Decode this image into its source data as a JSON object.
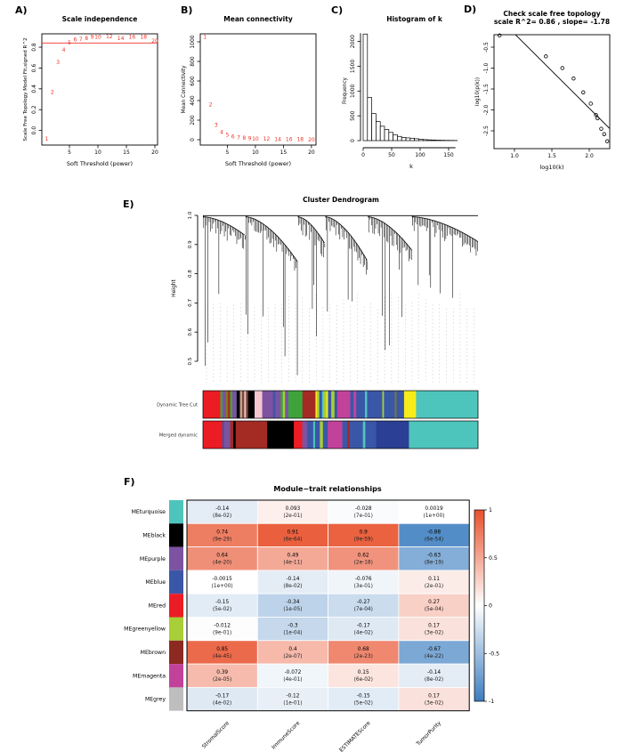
{
  "colors": {
    "accent_red": "#EE3226",
    "heat_positive": "#E8502B",
    "heat_negative": "#3C7DC0",
    "grid_dash": "#BDBDBD"
  },
  "chart_data": [
    {
      "id": "A",
      "label": "A)",
      "type": "labeled-scatter",
      "title": "Scale independence",
      "xlabel": "Soft Threshold (power)",
      "ylabel": "Scale Free Topology Model Fit,signed R^2",
      "xticks": [
        5,
        10,
        15,
        20
      ],
      "yticks": [
        "0.0",
        "0.2",
        "0.4",
        "0.6",
        "0.8"
      ],
      "ytick_vals": [
        0,
        0.2,
        0.4,
        0.6,
        0.8
      ],
      "hline": 0.84,
      "points": [
        [
          1,
          -0.08
        ],
        [
          2,
          0.37
        ],
        [
          3,
          0.655
        ],
        [
          4,
          0.775
        ],
        [
          5,
          0.845
        ],
        [
          6,
          0.872
        ],
        [
          7,
          0.878
        ],
        [
          8,
          0.885
        ],
        [
          9,
          0.898
        ],
        [
          10,
          0.898
        ],
        [
          12,
          0.902
        ],
        [
          14,
          0.885
        ],
        [
          16,
          0.898
        ],
        [
          18,
          0.898
        ],
        [
          20,
          0.858
        ]
      ]
    },
    {
      "id": "B",
      "label": "B)",
      "type": "labeled-scatter",
      "title": "Mean connectivity",
      "xlabel": "Soft Threshold (power)",
      "ylabel": "Mean Connectivity",
      "xticks": [
        5,
        10,
        15,
        20
      ],
      "yticks": [
        "0",
        "200",
        "400",
        "600",
        "800",
        "1000"
      ],
      "ytick_vals": [
        0,
        200,
        400,
        600,
        800,
        1000
      ],
      "points": [
        [
          1,
          1050
        ],
        [
          2,
          360
        ],
        [
          3,
          150
        ],
        [
          4,
          78
        ],
        [
          5,
          48
        ],
        [
          6,
          32
        ],
        [
          7,
          22
        ],
        [
          8,
          16
        ],
        [
          9,
          12
        ],
        [
          10,
          10
        ],
        [
          12,
          7
        ],
        [
          14,
          5
        ],
        [
          16,
          4
        ],
        [
          18,
          3
        ],
        [
          20,
          2
        ]
      ]
    },
    {
      "id": "C",
      "type": "histogram",
      "label": "C)",
      "title": "Histogram of k",
      "xlabel": "k",
      "ylabel": "Frequency",
      "xticks": [
        0,
        50,
        100,
        150
      ],
      "yticks": [
        "0",
        "500",
        "1000",
        "1500",
        "2000"
      ],
      "ytick_vals": [
        0,
        500,
        1000,
        1500,
        2000
      ],
      "bin_width_k": 7.5,
      "frequencies": [
        2150,
        870,
        545,
        385,
        290,
        225,
        165,
        120,
        85,
        63,
        55,
        48,
        38,
        28,
        20,
        15,
        12,
        9,
        7,
        5,
        4,
        3
      ]
    },
    {
      "id": "D",
      "type": "scatter",
      "label": "D)",
      "title_line1": "Check scale free topology",
      "title_line2": "scale R^2= 0.86 , slope= -1.78",
      "xlabel": "log10(k)",
      "ylabel": "log10(p(k))",
      "xticks": [
        "1.0",
        "1.5",
        "2.0"
      ],
      "xtick_vals": [
        1.0,
        1.5,
        2.0
      ],
      "yticks": [
        "-0.5",
        "-1.0",
        "-1.5",
        "-2.0",
        "-2.5"
      ],
      "ytick_vals": [
        -0.5,
        -1.0,
        -1.5,
        -2.0,
        -2.5
      ],
      "points": [
        [
          0.8,
          -0.22
        ],
        [
          1.42,
          -0.72
        ],
        [
          1.64,
          -1.0
        ],
        [
          1.79,
          -1.25
        ],
        [
          1.92,
          -1.58
        ],
        [
          2.02,
          -1.85
        ],
        [
          2.09,
          -2.12
        ],
        [
          2.11,
          -2.2
        ],
        [
          2.16,
          -2.45
        ],
        [
          2.2,
          -2.58
        ],
        [
          2.24,
          -2.75
        ]
      ],
      "fit_line": {
        "slope": -1.78,
        "intercept": 1.6
      }
    },
    {
      "id": "E",
      "type": "dendrogram",
      "label": "E)",
      "title": "Cluster Dendrogram",
      "ylabel": "Height",
      "yticks": [
        "0.5",
        "0.6",
        "0.7",
        "0.8",
        "0.9",
        "1.0"
      ],
      "ytick_vals": [
        0.5,
        0.6,
        0.7,
        0.8,
        0.9,
        1.0
      ],
      "clusters": [
        {
          "f0": 0.0,
          "f1": 0.155,
          "hEnd": 0.93,
          "deep": 0.5
        },
        {
          "f0": 0.155,
          "f1": 0.345,
          "hEnd": 0.84,
          "deep": 0.48
        },
        {
          "f0": 0.345,
          "f1": 0.445,
          "hEnd": 0.9,
          "deep": 0.52
        },
        {
          "f0": 0.445,
          "f1": 0.6,
          "hEnd": 0.84,
          "deep": 0.5
        },
        {
          "f0": 0.6,
          "f1": 0.76,
          "hEnd": 0.88,
          "deep": 0.58
        },
        {
          "f0": 0.76,
          "f1": 1.0,
          "hEnd": 0.91,
          "deep": 0.7
        }
      ],
      "bands": [
        {
          "label": "Dynamic Tree Cut",
          "segments": [
            [
              "#EC1C24",
              16
            ],
            [
              "#3FA33C",
              2
            ],
            [
              "#7C52A1",
              3
            ],
            [
              "#7E7A1F",
              2
            ],
            [
              "#A42A24",
              2
            ],
            [
              "#3FA33C",
              2
            ],
            [
              "#7C52A1",
              4
            ],
            [
              "#000000",
              3
            ],
            [
              "#C2A38B",
              2
            ],
            [
              "#7B4A3A",
              2
            ],
            [
              "#F5C6D0",
              1.5
            ],
            [
              "#7B4A3A",
              2
            ],
            [
              "#000000",
              6
            ],
            [
              "#F5C6D0",
              7
            ],
            [
              "#7C52A1",
              10
            ],
            [
              "#3A57A7",
              2
            ],
            [
              "#7C52A1",
              5
            ],
            [
              "#3FA33C",
              2
            ],
            [
              "#A8CE38",
              2
            ],
            [
              "#7C52A1",
              3
            ],
            [
              "#3FA33C",
              13
            ],
            [
              "#A42A24",
              12
            ],
            [
              "#F7EC1A",
              1.5
            ],
            [
              "#A8CE38",
              2
            ],
            [
              "#3A57A7",
              2.5
            ],
            [
              "#4EC5BC",
              1.5
            ],
            [
              "#A8CE38",
              2.5
            ],
            [
              "#F7EC1A",
              1.5
            ],
            [
              "#3A57A7",
              3
            ],
            [
              "#A8CE38",
              3
            ],
            [
              "#3A57A7",
              2.5
            ],
            [
              "#C2429A",
              12
            ],
            [
              "#3A57A7",
              3
            ],
            [
              "#C2429A",
              2.5
            ],
            [
              "#3A57A7",
              8
            ],
            [
              "#4EC5BC",
              2
            ],
            [
              "#3A57A7",
              14
            ],
            [
              "#A8CE38",
              1.5
            ],
            [
              "#3A57A7",
              10
            ],
            [
              "#7E7A1F",
              1.5
            ],
            [
              "#3A57A7",
              7
            ],
            [
              "#F7EC1A",
              11
            ],
            [
              "#4EC5BC",
              57
            ]
          ]
        },
        {
          "label": "Merged dynamic",
          "segments": [
            [
              "#EC1C24",
              16
            ],
            [
              "#3A57A7",
              1.5
            ],
            [
              "#7C52A1",
              5
            ],
            [
              "#A42A24",
              2.5
            ],
            [
              "#000000",
              2
            ],
            [
              "#A42A24",
              26
            ],
            [
              "#000000",
              22
            ],
            [
              "#EC1C24",
              7
            ],
            [
              "#7C52A1",
              4
            ],
            [
              "#3A57A7",
              5
            ],
            [
              "#4EC5BC",
              1.5
            ],
            [
              "#3A57A7",
              4
            ],
            [
              "#A8CE38",
              2.5
            ],
            [
              "#3A57A7",
              4
            ],
            [
              "#C2429A",
              12
            ],
            [
              "#3A57A7",
              4
            ],
            [
              "#A42A24",
              2
            ],
            [
              "#3A57A7",
              11
            ],
            [
              "#4EC5BC",
              2
            ],
            [
              "#3A57A7",
              9
            ],
            [
              "#2B3F94",
              27
            ],
            [
              "#4EC5BC",
              57
            ]
          ]
        }
      ]
    },
    {
      "id": "F",
      "type": "heatmap",
      "label": "F)",
      "title": "Module−trait relationships",
      "columns": [
        "StromalScore",
        "ImmuneScore",
        "ESTIMATEScore",
        "TumorPurity"
      ],
      "colorbar_ticks": [
        "1",
        "0.5",
        "0",
        "-0.5",
        "-1"
      ],
      "rows": [
        {
          "module": "MEturquoise",
          "swatch": "#4EC5BC",
          "cells": [
            {
              "r": "-0.14",
              "p": "(8e-02)",
              "v": -0.14
            },
            {
              "r": "0.093",
              "p": "(2e-01)",
              "v": 0.093
            },
            {
              "r": "-0.028",
              "p": "(7e-01)",
              "v": -0.028
            },
            {
              "r": "0.0019",
              "p": "(1e+00)",
              "v": 0.0019
            }
          ]
        },
        {
          "module": "MEblack",
          "swatch": "#000000",
          "cells": [
            {
              "r": "0.74",
              "p": "(9e-29)",
              "v": 0.74
            },
            {
              "r": "0.91",
              "p": "(6e-64)",
              "v": 0.91
            },
            {
              "r": "0.9",
              "p": "(9e-59)",
              "v": 0.9
            },
            {
              "r": "-0.88",
              "p": "(6e-54)",
              "v": -0.88
            }
          ]
        },
        {
          "module": "MEpurple",
          "swatch": "#7C52A1",
          "cells": [
            {
              "r": "0.64",
              "p": "(4e-20)",
              "v": 0.64
            },
            {
              "r": "0.49",
              "p": "(4e-11)",
              "v": 0.49
            },
            {
              "r": "0.62",
              "p": "(2e-18)",
              "v": 0.62
            },
            {
              "r": "-0.63",
              "p": "(8e-19)",
              "v": -0.63
            }
          ]
        },
        {
          "module": "MEblue",
          "swatch": "#3A57A7",
          "cells": [
            {
              "r": "-0.0015",
              "p": "(1e+00)",
              "v": -0.0015
            },
            {
              "r": "-0.14",
              "p": "(8e-02)",
              "v": -0.14
            },
            {
              "r": "-0.076",
              "p": "(3e-01)",
              "v": -0.076
            },
            {
              "r": "0.11",
              "p": "(2e-01)",
              "v": 0.11
            }
          ]
        },
        {
          "module": "MEred",
          "swatch": "#EC1C24",
          "cells": [
            {
              "r": "-0.15",
              "p": "(5e-02)",
              "v": -0.15
            },
            {
              "r": "-0.34",
              "p": "(1e-05)",
              "v": -0.34
            },
            {
              "r": "-0.27",
              "p": "(7e-04)",
              "v": -0.27
            },
            {
              "r": "0.27",
              "p": "(5e-04)",
              "v": 0.27
            }
          ]
        },
        {
          "module": "MEgreenyellow",
          "swatch": "#A8CE38",
          "cells": [
            {
              "r": "-0.012",
              "p": "(9e-01)",
              "v": -0.012
            },
            {
              "r": "-0.3",
              "p": "(1e-04)",
              "v": -0.3
            },
            {
              "r": "-0.17",
              "p": "(4e-02)",
              "v": -0.17
            },
            {
              "r": "0.17",
              "p": "(3e-02)",
              "v": 0.17
            }
          ]
        },
        {
          "module": "MEbrown",
          "swatch": "#8C2A21",
          "cells": [
            {
              "r": "0.85",
              "p": "(4e-45)",
              "v": 0.85
            },
            {
              "r": "0.4",
              "p": "(2e-07)",
              "v": 0.4
            },
            {
              "r": "0.68",
              "p": "(2e-23)",
              "v": 0.68
            },
            {
              "r": "-0.67",
              "p": "(4e-22)",
              "v": -0.67
            }
          ]
        },
        {
          "module": "MEmagenta",
          "swatch": "#C2429A",
          "cells": [
            {
              "r": "0.39",
              "p": "(2e-05)",
              "v": 0.39
            },
            {
              "r": "-0.072",
              "p": "(4e-01)",
              "v": -0.072
            },
            {
              "r": "0.15",
              "p": "(6e-02)",
              "v": 0.15
            },
            {
              "r": "-0.14",
              "p": "(8e-02)",
              "v": -0.14
            }
          ]
        },
        {
          "module": "MEgrey",
          "swatch": "#BEBEBE",
          "cells": [
            {
              "r": "-0.17",
              "p": "(4e-02)",
              "v": -0.17
            },
            {
              "r": "-0.12",
              "p": "(1e-01)",
              "v": -0.12
            },
            {
              "r": "-0.15",
              "p": "(5e-02)",
              "v": -0.15
            },
            {
              "r": "0.17",
              "p": "(3e-02)",
              "v": 0.17
            }
          ]
        }
      ]
    }
  ]
}
